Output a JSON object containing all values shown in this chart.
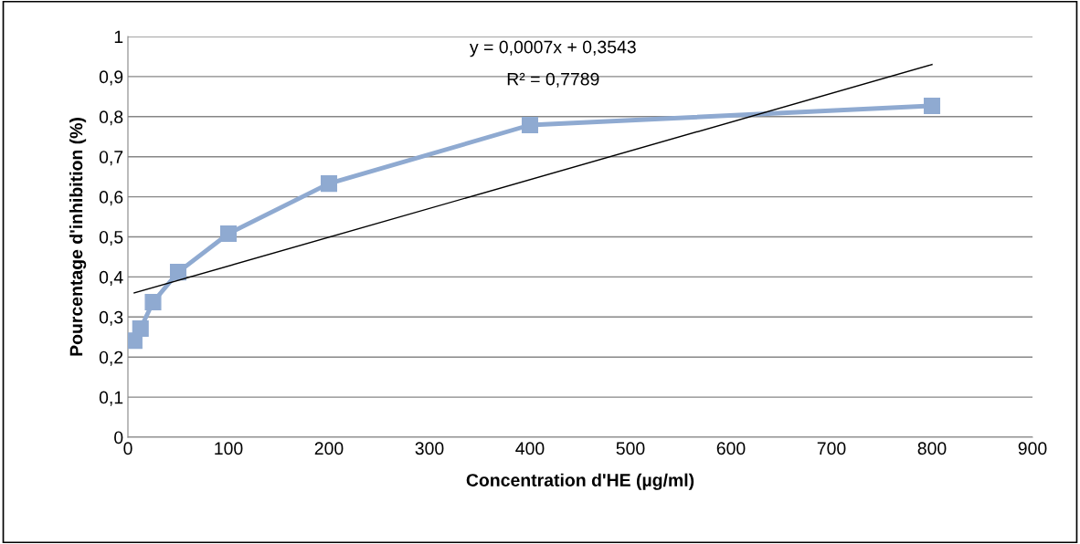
{
  "chart_data": {
    "type": "line",
    "xlabel": "Concentration d'HE (µg/ml)",
    "ylabel": "Pourcentage d'inhibition (%)",
    "series": [
      {
        "color": "#8faad1",
        "x": [
          6.25,
          12.5,
          25,
          50,
          100,
          200,
          400,
          800
        ],
        "values": [
          0.241,
          0.271,
          0.337,
          0.412,
          0.508,
          0.633,
          0.779,
          0.827
        ],
        "marker": "square"
      },
      {
        "color": "#000000",
        "x": [
          6.25,
          800
        ],
        "values": [
          0.36,
          0.93
        ],
        "marker": "none"
      }
    ],
    "annotations": [
      "y = 0,0007x + 0,3543",
      "R² = 0,7789"
    ],
    "xlim": [
      0,
      900
    ],
    "xticks": [
      0,
      100,
      200,
      300,
      400,
      500,
      600,
      700,
      800,
      900
    ],
    "ylim": [
      0,
      1
    ],
    "yticks": [
      0,
      {
        "value": 0.1,
        "label": "0,1"
      },
      {
        "value": 0.2,
        "label": "0,2"
      },
      {
        "value": 0.3,
        "label": "0,3"
      },
      {
        "value": 0.4,
        "label": "0,4"
      },
      {
        "value": 0.5,
        "label": "0,5"
      },
      {
        "value": 0.6,
        "label": "0,6"
      },
      {
        "value": 0.7,
        "label": "0,7"
      },
      {
        "value": 0.8,
        "label": "0,8"
      },
      {
        "value": 0.9,
        "label": "0,9"
      },
      1
    ],
    "grid": "y",
    "legend": false
  }
}
